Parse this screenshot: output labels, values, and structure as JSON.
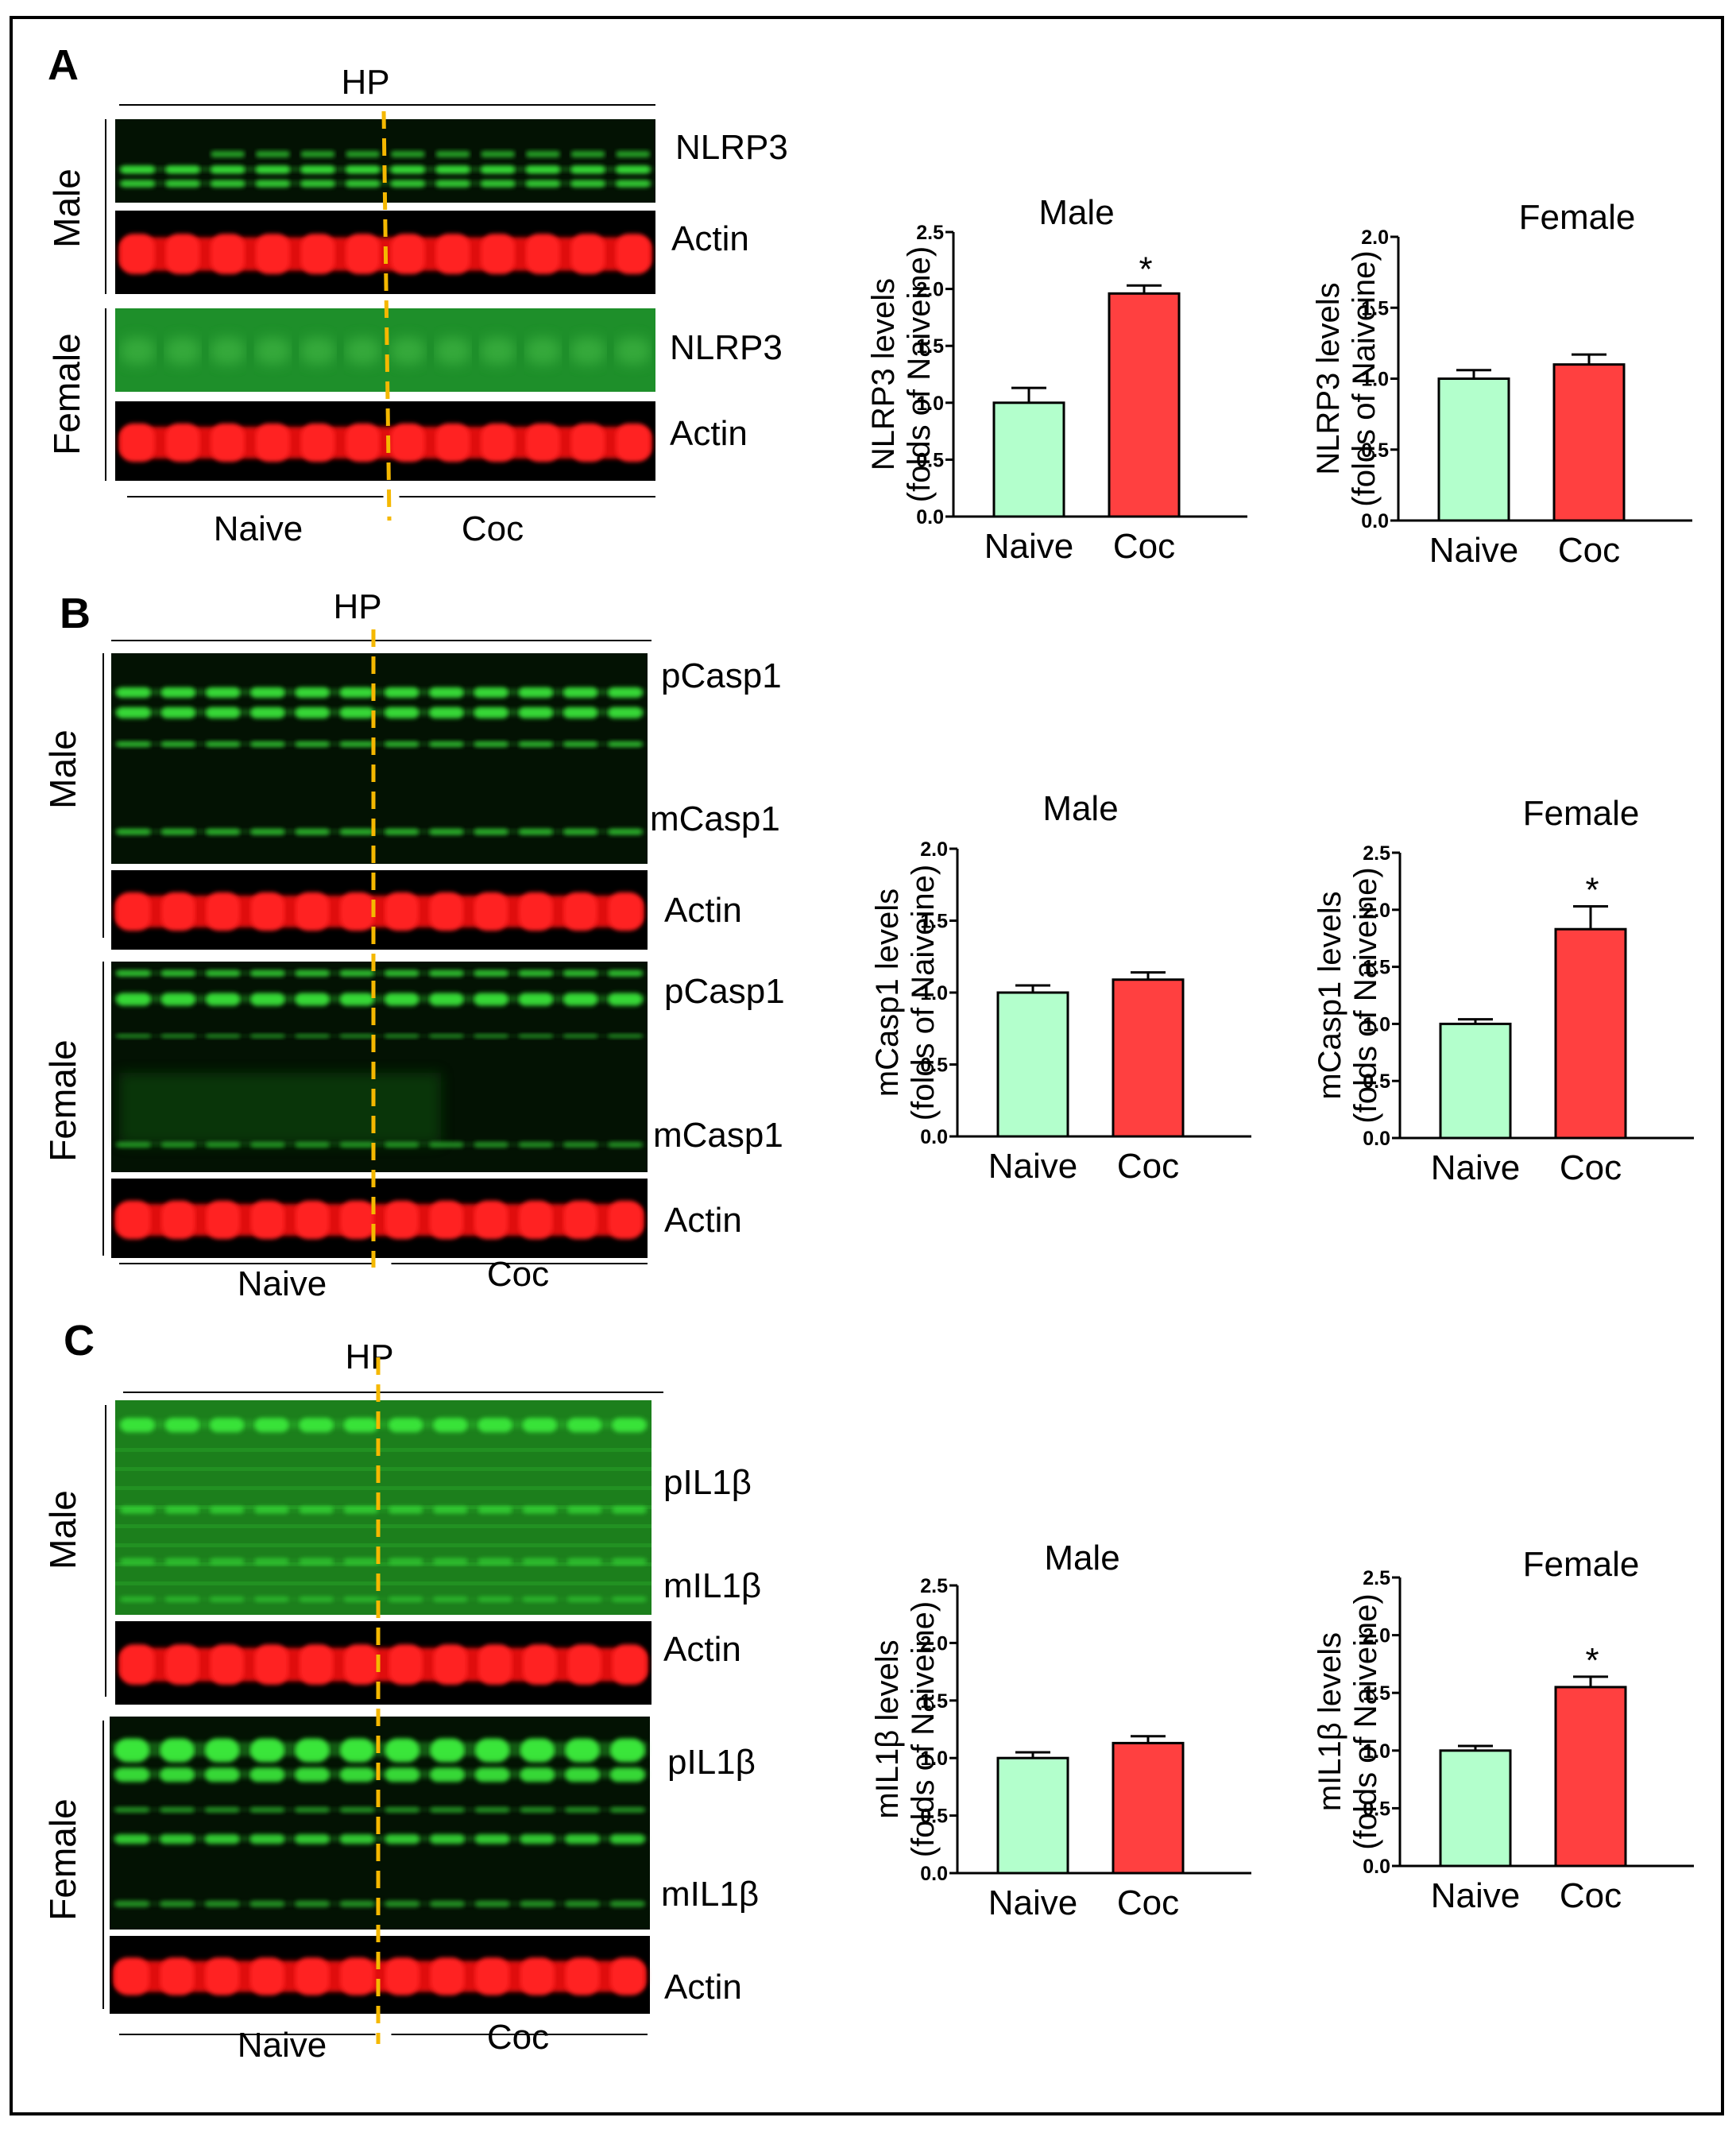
{
  "figure": {
    "panels": [
      {
        "id": "A",
        "label": "A",
        "region": "HP",
        "groups": [
          "Naive",
          "Coc"
        ],
        "sexes": [
          "Male",
          "Female"
        ],
        "bands_male": [
          "NLRP3",
          "Actin"
        ],
        "bands_female": [
          "NLRP3",
          "Actin"
        ]
      },
      {
        "id": "B",
        "label": "B",
        "region": "HP",
        "groups": [
          "Naive",
          "Coc"
        ],
        "sexes": [
          "Male",
          "Female"
        ],
        "bands_male": [
          "pCasp1",
          "mCasp1",
          "Actin"
        ],
        "bands_female": [
          "pCasp1",
          "mCasp1",
          "Actin"
        ]
      },
      {
        "id": "C",
        "label": "C",
        "region": "HP",
        "groups": [
          "Naive",
          "Coc"
        ],
        "sexes": [
          "Male",
          "Female"
        ],
        "bands_male": [
          "pIL1β",
          "mIL1β",
          "Actin"
        ],
        "bands_female": [
          "pIL1β",
          "mIL1β",
          "Actin"
        ]
      }
    ],
    "colors": {
      "naive": "#b3ffcc",
      "coc": "#ff4040",
      "blot_green": "#2fd12f",
      "blot_red": "#e01010",
      "divider": "#f5b800"
    }
  },
  "chart_data": [
    {
      "type": "bar",
      "panel": "A",
      "title": "Male",
      "ylabel": [
        "NLRP3 levels",
        "(folds of Naiveine)"
      ],
      "categories": [
        "Naive",
        "Coc"
      ],
      "values": [
        1.0,
        1.96
      ],
      "errors": [
        0.13,
        0.07
      ],
      "significant": [
        false,
        true
      ],
      "ylim": [
        0,
        2.5
      ],
      "yticks": [
        "0.0",
        "0.5",
        "1.0",
        "1.5",
        "2.0",
        "2.5"
      ]
    },
    {
      "type": "bar",
      "panel": "A",
      "title": "Female",
      "ylabel": [
        "NLRP3 levels",
        "(folds of Naiveine)"
      ],
      "categories": [
        "Naive",
        "Coc"
      ],
      "values": [
        1.0,
        1.1
      ],
      "errors": [
        0.06,
        0.07
      ],
      "significant": [
        false,
        false
      ],
      "ylim": [
        0,
        2.0
      ],
      "yticks": [
        "0.0",
        "0.5",
        "1.0",
        "1.5",
        "2.0"
      ]
    },
    {
      "type": "bar",
      "panel": "B",
      "title": "Male",
      "ylabel": [
        "mCasp1 levels",
        "(folds of Naiveine)"
      ],
      "categories": [
        "Naive",
        "Coc"
      ],
      "values": [
        1.0,
        1.09
      ],
      "errors": [
        0.05,
        0.05
      ],
      "significant": [
        false,
        false
      ],
      "ylim": [
        0,
        2.0
      ],
      "yticks": [
        "0.0",
        "0.5",
        "1.0",
        "1.5",
        "2.0"
      ]
    },
    {
      "type": "bar",
      "panel": "B",
      "title": "Female",
      "ylabel": [
        "mCasp1 levels",
        "(folds of Naiveine)"
      ],
      "categories": [
        "Naive",
        "Coc"
      ],
      "values": [
        1.0,
        1.83
      ],
      "errors": [
        0.04,
        0.2
      ],
      "significant": [
        false,
        true
      ],
      "ylim": [
        0,
        2.5
      ],
      "yticks": [
        "0.0",
        "0.5",
        "1.0",
        "1.5",
        "2.0",
        "2.5"
      ]
    },
    {
      "type": "bar",
      "panel": "C",
      "title": "Male",
      "ylabel": [
        "mIL1β levels",
        "(folds of Naiveine)"
      ],
      "categories": [
        "Naive",
        "Coc"
      ],
      "values": [
        1.0,
        1.13
      ],
      "errors": [
        0.05,
        0.06
      ],
      "significant": [
        false,
        false
      ],
      "ylim": [
        0,
        2.5
      ],
      "yticks": [
        "0.0",
        "0.5",
        "1.0",
        "1.5",
        "2.0",
        "2.5"
      ]
    },
    {
      "type": "bar",
      "panel": "C",
      "title": "Female",
      "ylabel": [
        "mIL1β levels",
        "(folds of Naiveine)"
      ],
      "categories": [
        "Naive",
        "Coc"
      ],
      "values": [
        1.0,
        1.55
      ],
      "errors": [
        0.04,
        0.09
      ],
      "significant": [
        false,
        true
      ],
      "ylim": [
        0,
        2.5
      ],
      "yticks": [
        "0.0",
        "0.5",
        "1.0",
        "1.5",
        "2.0",
        "2.5"
      ]
    }
  ]
}
